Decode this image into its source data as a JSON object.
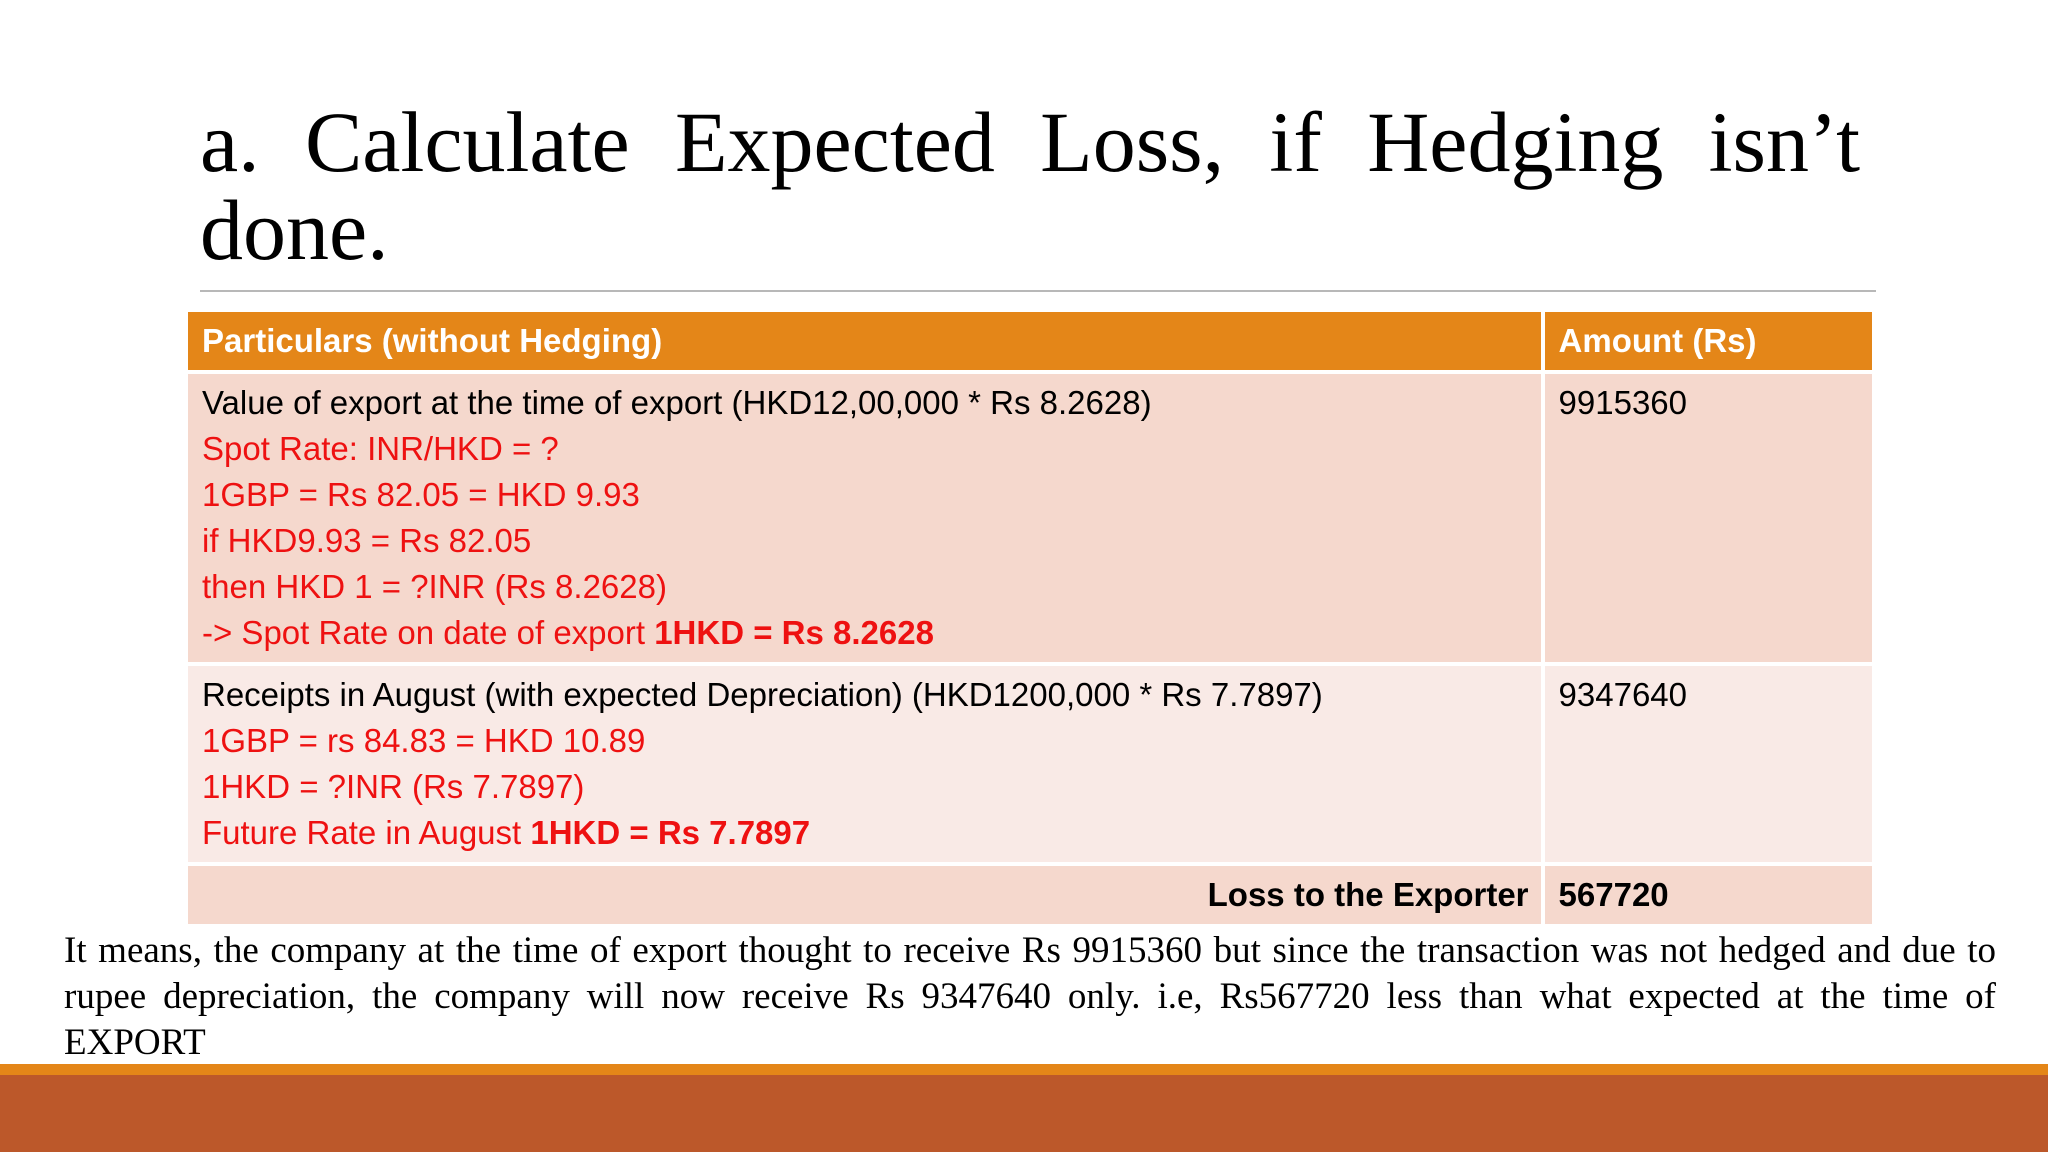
{
  "slide": {
    "title": "a. Calculate Expected Loss, if Hedging isn’t done.",
    "table": {
      "headers": [
        "Particulars (without Hedging)",
        "Amount (Rs)"
      ],
      "row1": {
        "line1": "Value of export at the time of export (HKD12,00,000 * Rs 8.2628)",
        "line2": "Spot Rate: INR/HKD = ?",
        "line3": "1GBP = Rs 82.05 = HKD 9.93",
        "line4": "if HKD9.93 = Rs 82.05",
        "line5": "then HKD 1 = ?INR (Rs 8.2628)",
        "line6_prefix": "-> Spot Rate on date of export ",
        "line6_bold": "1HKD = Rs 8.2628",
        "amount": "9915360"
      },
      "row2": {
        "line1": "Receipts in August (with expected Depreciation) (HKD1200,000 * Rs 7.7897)",
        "line2": "1GBP = rs 84.83 = HKD 10.89",
        "line3": "1HKD = ?INR (Rs 7.7897)",
        "line4_prefix": "Future Rate in August ",
        "line4_bold": "1HKD = Rs 7.7897",
        "amount": "9347640"
      },
      "row3": {
        "label": "Loss to the Exporter",
        "amount": "567720"
      }
    },
    "note": "It means, the company at the time of export thought to receive Rs 9915360 but since the transaction was not hedged and due to rupee depreciation, the company will now receive Rs 9347640 only. i.e, Rs567720 less than what expected at the time of EXPORT",
    "colors": {
      "header": "#e48618",
      "row_dark": "#f5d8cd",
      "row_light": "#f9eae6",
      "red_text": "#ee1111",
      "footer_band": "#bc582a"
    }
  }
}
